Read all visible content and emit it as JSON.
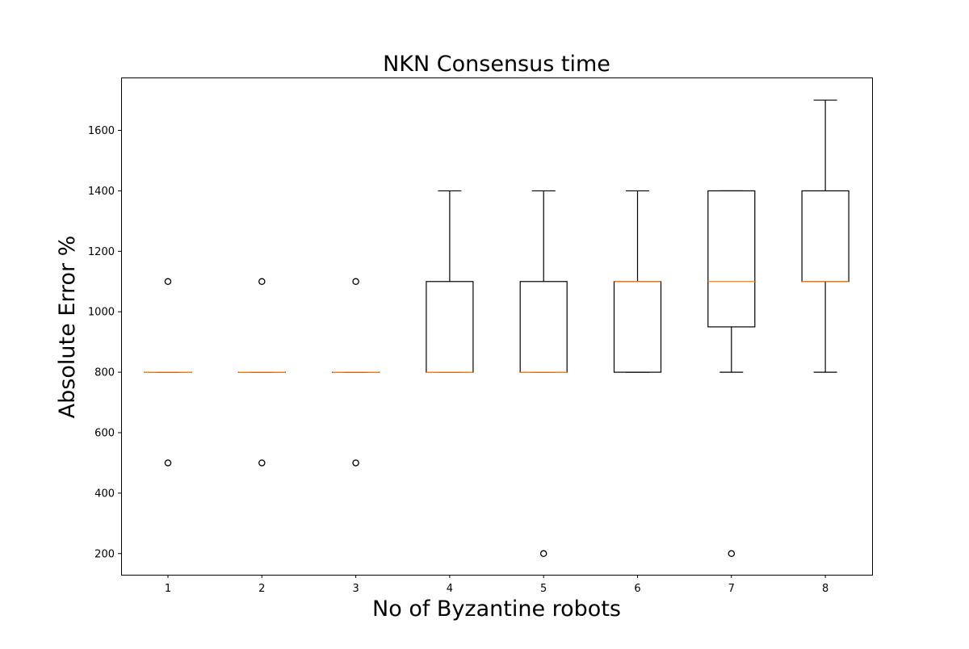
{
  "chart_data": {
    "type": "box",
    "title": "NKN Consensus time",
    "xlabel": "No of Byzantine robots",
    "ylabel": "Absolute Error %",
    "ylim": [
      130,
      1775
    ],
    "yticks": [
      200,
      400,
      600,
      800,
      1000,
      1200,
      1400,
      1600
    ],
    "categories": [
      "1",
      "2",
      "3",
      "4",
      "5",
      "6",
      "7",
      "8"
    ],
    "grid": false,
    "colors": {
      "box": "#000000",
      "median": "#ff7f0e",
      "background": "#ffffff"
    },
    "boxes": [
      {
        "category": "1",
        "whisker_low": 800,
        "q1": 800,
        "median": 800,
        "q3": 800,
        "whisker_high": 800,
        "outliers": [
          500,
          1100
        ]
      },
      {
        "category": "2",
        "whisker_low": 800,
        "q1": 800,
        "median": 800,
        "q3": 800,
        "whisker_high": 800,
        "outliers": [
          500,
          1100
        ]
      },
      {
        "category": "3",
        "whisker_low": 800,
        "q1": 800,
        "median": 800,
        "q3": 800,
        "whisker_high": 800,
        "outliers": [
          500,
          1100
        ]
      },
      {
        "category": "4",
        "whisker_low": 800,
        "q1": 800,
        "median": 800,
        "q3": 1100,
        "whisker_high": 1400,
        "outliers": []
      },
      {
        "category": "5",
        "whisker_low": 800,
        "q1": 800,
        "median": 800,
        "q3": 1100,
        "whisker_high": 1400,
        "outliers": [
          200
        ]
      },
      {
        "category": "6",
        "whisker_low": 800,
        "q1": 800,
        "median": 1100,
        "q3": 1100,
        "whisker_high": 1400,
        "outliers": []
      },
      {
        "category": "7",
        "whisker_low": 800,
        "q1": 950,
        "median": 1100,
        "q3": 1400,
        "whisker_high": 1400,
        "outliers": [
          200
        ]
      },
      {
        "category": "8",
        "whisker_low": 800,
        "q1": 1100,
        "median": 1100,
        "q3": 1400,
        "whisker_high": 1700,
        "outliers": []
      }
    ]
  }
}
